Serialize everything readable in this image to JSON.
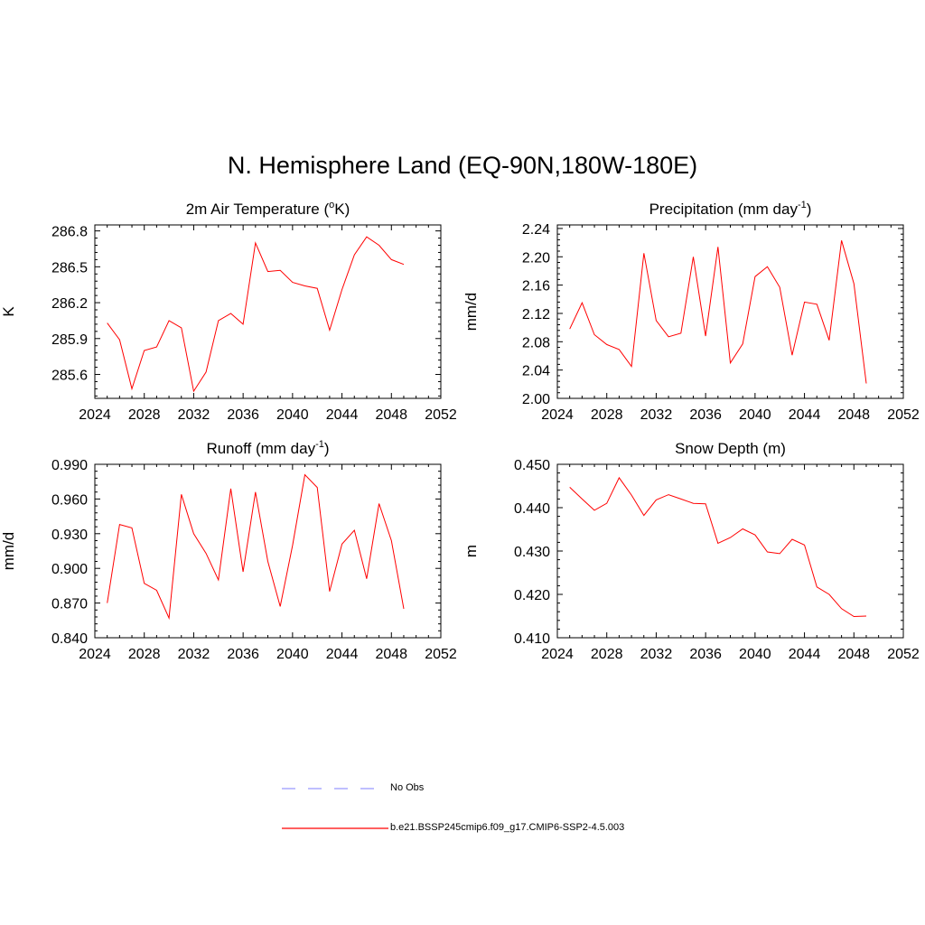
{
  "title": "N. Hemisphere Land (EQ-90N,180W-180E)",
  "colors": {
    "model_line": "#ff0000",
    "obs_line": "#9999ff",
    "axis": "#000000"
  },
  "legend": {
    "obs_label": "No Obs",
    "model_label": "b.e21.BSSP245cmip6.f09_g17.CMIP6-SSP2-4.5.003"
  },
  "chart_data": [
    {
      "type": "line",
      "title": "2m Air Temperature (",
      "title_sup": "o",
      "title_tail": "K)",
      "ylabel": "K",
      "xlabel": "",
      "xlim": [
        2024,
        2052
      ],
      "ylim": [
        285.4,
        286.85
      ],
      "xticks": [
        2024,
        2028,
        2032,
        2036,
        2040,
        2044,
        2048,
        2052
      ],
      "yticks": [
        285.6,
        285.9,
        286.2,
        286.5,
        286.8
      ],
      "ytick_labels": [
        "285.6",
        "285.9",
        "286.2",
        "286.5",
        "286.8"
      ],
      "ytick_minor": 0.06,
      "x": [
        2025,
        2026,
        2027,
        2028,
        2029,
        2030,
        2031,
        2032,
        2033,
        2034,
        2035,
        2036,
        2037,
        2038,
        2039,
        2040,
        2041,
        2042,
        2043,
        2044,
        2045,
        2046,
        2047,
        2048,
        2049
      ],
      "series": [
        {
          "name": "b.e21.BSSP245cmip6.f09_g17.CMIP6-SSP2-4.5.003",
          "values": [
            286.03,
            285.89,
            285.48,
            285.8,
            285.83,
            286.05,
            285.99,
            285.46,
            285.62,
            286.05,
            286.11,
            286.02,
            286.7,
            286.46,
            286.47,
            286.37,
            286.34,
            286.32,
            285.97,
            286.31,
            286.6,
            286.75,
            286.68,
            286.56,
            286.52
          ]
        }
      ]
    },
    {
      "type": "line",
      "title": "Precipitation (mm day",
      "title_sup": "-1",
      "title_tail": ")",
      "ylabel": "mm/d",
      "xlabel": "",
      "xlim": [
        2024,
        2052
      ],
      "ylim": [
        2.0,
        2.245
      ],
      "xticks": [
        2024,
        2028,
        2032,
        2036,
        2040,
        2044,
        2048,
        2052
      ],
      "yticks": [
        2.0,
        2.04,
        2.08,
        2.12,
        2.16,
        2.2,
        2.24
      ],
      "ytick_labels": [
        "2.00",
        "2.04",
        "2.08",
        "2.12",
        "2.16",
        "2.20",
        "2.24"
      ],
      "ytick_minor": 0.008,
      "x": [
        2025,
        2026,
        2027,
        2028,
        2029,
        2030,
        2031,
        2032,
        2033,
        2034,
        2035,
        2036,
        2037,
        2038,
        2039,
        2040,
        2041,
        2042,
        2043,
        2044,
        2045,
        2046,
        2047,
        2048,
        2049
      ],
      "series": [
        {
          "name": "b.e21.BSSP245cmip6.f09_g17.CMIP6-SSP2-4.5.003",
          "values": [
            2.098,
            2.135,
            2.09,
            2.076,
            2.069,
            2.045,
            2.205,
            2.11,
            2.087,
            2.092,
            2.2,
            2.088,
            2.214,
            2.05,
            2.077,
            2.172,
            2.186,
            2.157,
            2.061,
            2.136,
            2.133,
            2.082,
            2.223,
            2.162,
            2.021
          ]
        }
      ]
    },
    {
      "type": "line",
      "title": "Runoff (mm day",
      "title_sup": "-1",
      "title_tail": ")",
      "ylabel": "mm/d",
      "xlabel": "",
      "xlim": [
        2024,
        2052
      ],
      "ylim": [
        0.84,
        0.99
      ],
      "xticks": [
        2024,
        2028,
        2032,
        2036,
        2040,
        2044,
        2048,
        2052
      ],
      "yticks": [
        0.84,
        0.87,
        0.9,
        0.93,
        0.96,
        0.99
      ],
      "ytick_labels": [
        "0.840",
        "0.870",
        "0.900",
        "0.930",
        "0.960",
        "0.990"
      ],
      "ytick_minor": 0.006,
      "x": [
        2025,
        2026,
        2027,
        2028,
        2029,
        2030,
        2031,
        2032,
        2033,
        2034,
        2035,
        2036,
        2037,
        2038,
        2039,
        2040,
        2041,
        2042,
        2043,
        2044,
        2045,
        2046,
        2047,
        2048,
        2049
      ],
      "series": [
        {
          "name": "b.e21.BSSP245cmip6.f09_g17.CMIP6-SSP2-4.5.003",
          "values": [
            0.87,
            0.938,
            0.935,
            0.887,
            0.881,
            0.857,
            0.964,
            0.93,
            0.913,
            0.89,
            0.969,
            0.897,
            0.966,
            0.906,
            0.867,
            0.92,
            0.981,
            0.97,
            0.88,
            0.921,
            0.933,
            0.891,
            0.956,
            0.924,
            0.865
          ]
        }
      ]
    },
    {
      "type": "line",
      "title": "Snow Depth (m)",
      "title_sup": "",
      "title_tail": "",
      "ylabel": "m",
      "xlabel": "",
      "xlim": [
        2024,
        2052
      ],
      "ylim": [
        0.41,
        0.45
      ],
      "xticks": [
        2024,
        2028,
        2032,
        2036,
        2040,
        2044,
        2048,
        2052
      ],
      "yticks": [
        0.41,
        0.42,
        0.43,
        0.44,
        0.45
      ],
      "ytick_labels": [
        "0.410",
        "0.420",
        "0.430",
        "0.440",
        "0.450"
      ],
      "ytick_minor": 0.002,
      "x": [
        2025,
        2026,
        2027,
        2028,
        2029,
        2030,
        2031,
        2032,
        2033,
        2034,
        2035,
        2036,
        2037,
        2038,
        2039,
        2040,
        2041,
        2042,
        2043,
        2044,
        2045,
        2046,
        2047,
        2048,
        2049
      ],
      "series": [
        {
          "name": "b.e21.BSSP245cmip6.f09_g17.CMIP6-SSP2-4.5.003",
          "values": [
            0.4447,
            0.442,
            0.4394,
            0.441,
            0.4469,
            0.4429,
            0.4382,
            0.4418,
            0.443,
            0.442,
            0.441,
            0.4409,
            0.4318,
            0.4331,
            0.4351,
            0.4337,
            0.4298,
            0.4294,
            0.4327,
            0.4314,
            0.4217,
            0.42,
            0.4167,
            0.4149,
            0.415
          ]
        }
      ]
    }
  ]
}
